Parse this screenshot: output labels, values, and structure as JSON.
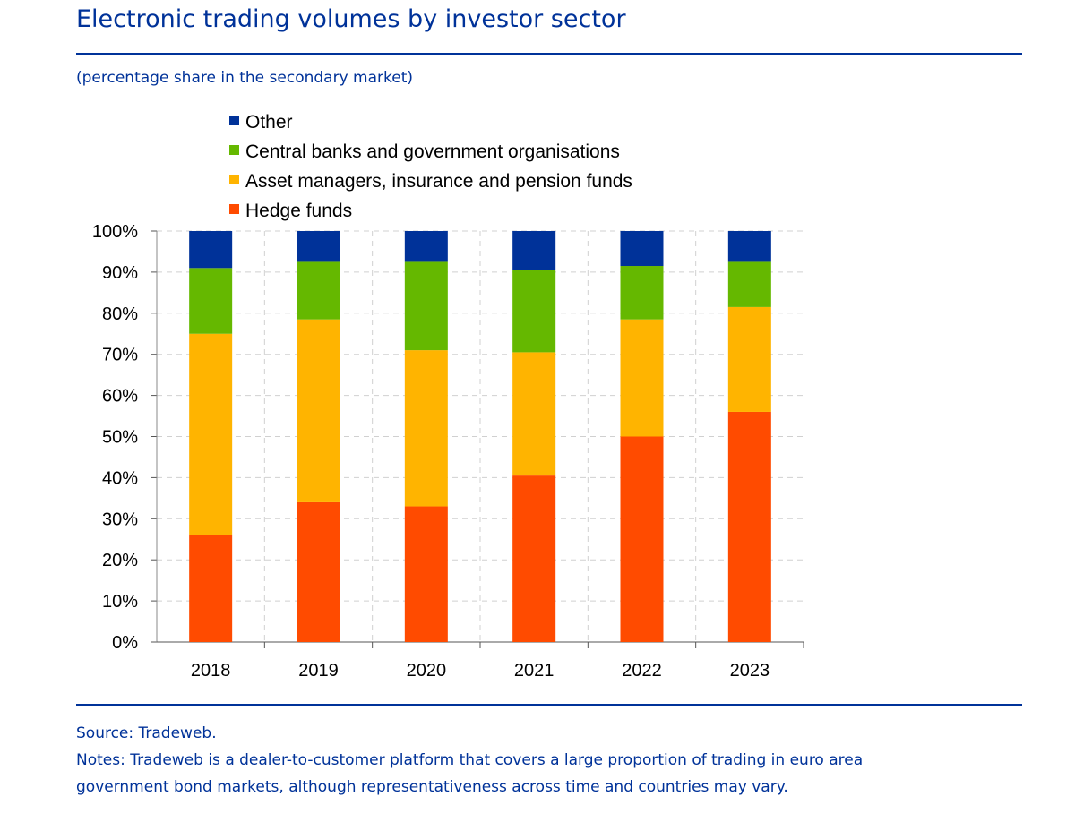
{
  "header": {
    "title": "Electronic trading volumes by investor sector",
    "subtitle": "(percentage share in the secondary market)"
  },
  "footer": {
    "source": "Source: Tradeweb.",
    "notes_line1": "Notes: Tradeweb is a dealer-to-customer platform that covers a large proportion of trading in euro area",
    "notes_line2": "government bond markets, although representativeness across time and countries may vary."
  },
  "chart_data": {
    "type": "bar",
    "stacked": true,
    "title": "Electronic trading volumes by investor sector",
    "ylabel": "",
    "xlabel": "",
    "ylim": [
      0,
      100
    ],
    "yticks": [
      "0%",
      "10%",
      "20%",
      "30%",
      "40%",
      "50%",
      "60%",
      "70%",
      "80%",
      "90%",
      "100%"
    ],
    "categories": [
      "2018",
      "2019",
      "2020",
      "2021",
      "2022",
      "2023"
    ],
    "legend_position": "top-left",
    "series": [
      {
        "name": "Hedge funds",
        "color": "#FF4B00",
        "values": [
          26,
          34,
          33,
          40.5,
          50,
          56
        ]
      },
      {
        "name": "Asset managers, insurance and pension funds",
        "color": "#FFB400",
        "values": [
          49,
          44.5,
          38,
          30,
          28.5,
          25.5
        ]
      },
      {
        "name": "Central banks and government organisations",
        "color": "#65B800",
        "values": [
          16,
          14,
          21.5,
          20,
          13,
          11
        ]
      },
      {
        "name": "Other",
        "color": "#003299",
        "values": [
          9,
          7.5,
          7.5,
          9.5,
          8.5,
          7.5
        ]
      }
    ]
  }
}
